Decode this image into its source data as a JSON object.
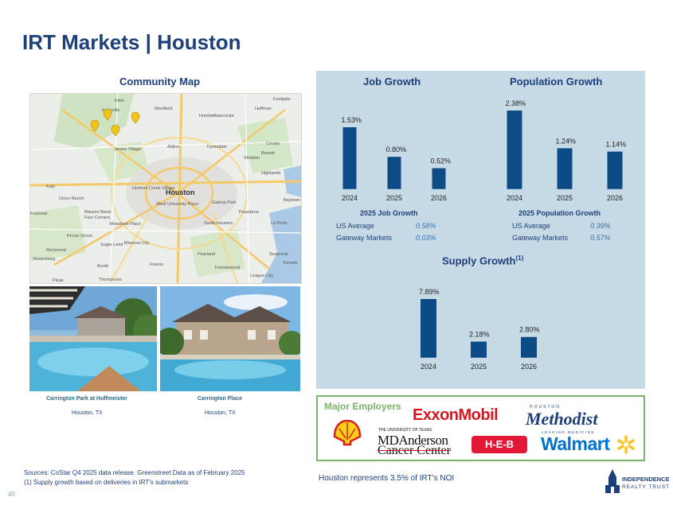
{
  "page": {
    "title": "IRT Markets | Houston",
    "page_number": "40"
  },
  "map": {
    "title": "Community Map",
    "labels": [
      "Klein",
      "Kohnville",
      "Westfield",
      "Humble",
      "Atascocita",
      "Huffman",
      "Eastgate",
      "Aldine",
      "Jersey Village",
      "Dyersdale",
      "Crosby",
      "Barrett",
      "Sheldon",
      "Highlands",
      "Katy",
      "Hunters Creek Village",
      "Houston",
      "Galena Park",
      "Baytown",
      "Cinco Ranch",
      "Mission Bend",
      "Four Corners",
      "West University Place",
      "Pasadena",
      "Meadows Place",
      "South Houston",
      "La Porte",
      "Pecan Grove",
      "Sugar Land",
      "Missouri City",
      "Richmond",
      "Pearland",
      "Seabrook",
      "Rosenberg",
      "Booth",
      "Fresno",
      "Friendswood",
      "Kemah",
      "League City",
      "Thompsons",
      "Fulshear",
      "Pleak"
    ]
  },
  "photos": [
    {
      "name": "Carrington Park at Huffmeister",
      "location": "Houston, TX"
    },
    {
      "name": "Carrington Place",
      "location": "Houston, TX"
    }
  ],
  "chart_data": [
    {
      "type": "bar",
      "title": "Job Growth",
      "categories": [
        "2024",
        "2025",
        "2026"
      ],
      "values": [
        1.53,
        0.8,
        0.52
      ],
      "value_labels": [
        "1.53%",
        "0.80%",
        "0.52%"
      ]
    },
    {
      "type": "bar",
      "title": "Population Growth",
      "categories": [
        "2024",
        "2025",
        "2026"
      ],
      "values": [
        2.38,
        1.24,
        1.14
      ],
      "value_labels": [
        "2.38%",
        "1.24%",
        "1.14%"
      ]
    },
    {
      "type": "bar",
      "title": "Supply Growth",
      "title_sup": "(1)",
      "categories": [
        "2024",
        "2025",
        "2026"
      ],
      "values": [
        7.89,
        2.18,
        2.8
      ],
      "value_labels": [
        "7.89%",
        "2.18%",
        "2.80%"
      ]
    }
  ],
  "job_stats": {
    "title": "2025 Job Growth",
    "rows": [
      {
        "label": "US Average",
        "value": "0.58%"
      },
      {
        "label": "Gateway Markets",
        "value": "0.03%"
      }
    ]
  },
  "pop_stats": {
    "title": "2025 Population Growth",
    "rows": [
      {
        "label": "US Average",
        "value": "0.39%"
      },
      {
        "label": "Gateway Markets",
        "value": "0.57%"
      }
    ]
  },
  "employers": {
    "title": "Major Employers",
    "exxon": "ExxonMobil",
    "methodist_top": "HOUSTON",
    "methodist_name": "Methodist",
    "methodist_tag": "LEADING MEDICINE",
    "mda_top": "THE UNIVERSITY OF TEXAS",
    "mda_name": "MDAnderson",
    "mda_sub": "Cancer Center",
    "heb": "H-E-B",
    "walmart": "Walmart"
  },
  "noi_note": "Houston represents 3.5% of IRT's NOI",
  "sources": "Sources: CoStar Q4 2025 data release. Greenstreet Data as of February 2025",
  "footnote": "(1)   Supply growth based on deliveries in IRT's submarkets",
  "logo": {
    "line1": "INDEPENDENCE",
    "line2": "REALTY TRUST"
  },
  "colors": {
    "navy": "#1d3f7a",
    "bar": "#0d4b87",
    "panel": "#c7dbe7",
    "employer_border": "#7cb46b"
  }
}
